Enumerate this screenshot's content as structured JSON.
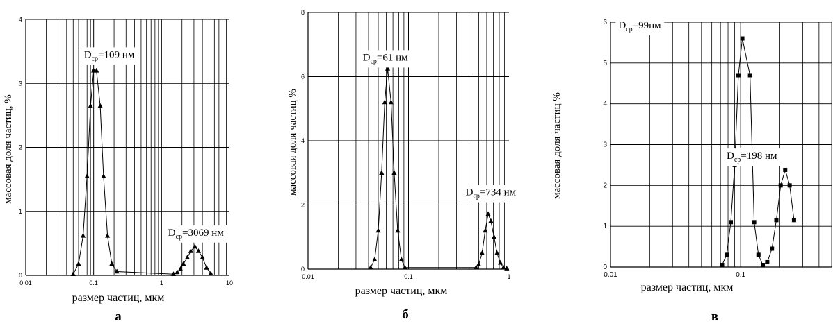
{
  "chart_data": [
    {
      "type": "line",
      "panel_label": "а",
      "xlabel": "размер частиц, мкм",
      "ylabel": "массовая доля частиц, %",
      "xscale": "log",
      "xlim": [
        0.01,
        10
      ],
      "ylim": [
        0,
        4
      ],
      "x_ticks": [
        {
          "value": 0.01,
          "label": "0.01"
        },
        {
          "value": 0.1,
          "label": "0.1"
        },
        {
          "value": 1,
          "label": "1"
        },
        {
          "value": 10,
          "label": "10"
        }
      ],
      "y_ticks": [
        {
          "value": 0,
          "label": "0"
        },
        {
          "value": 1,
          "label": "1"
        },
        {
          "value": 2,
          "label": "2"
        },
        {
          "value": 3,
          "label": "3"
        },
        {
          "value": 4,
          "label": "4"
        }
      ],
      "marker": "triangle",
      "series": [
        {
          "x": [
            0.05,
            0.06,
            0.07,
            0.08,
            0.09,
            0.1,
            0.11,
            0.125,
            0.14,
            0.16,
            0.185,
            0.22,
            1.5,
            1.7,
            1.9,
            2.1,
            2.4,
            2.7,
            3.1,
            3.5,
            4.0,
            4.6,
            5.3
          ],
          "y": [
            0.02,
            0.18,
            0.62,
            1.55,
            2.65,
            3.2,
            3.2,
            2.65,
            1.55,
            0.62,
            0.18,
            0.06,
            0.02,
            0.05,
            0.1,
            0.18,
            0.28,
            0.38,
            0.45,
            0.38,
            0.28,
            0.12,
            0.03
          ]
        }
      ],
      "annotations": [
        {
          "text_main": "D",
          "text_sub": "ср",
          "text_rest": "=109 нм",
          "x": 0.072,
          "y": 3.4
        },
        {
          "text_main": "D",
          "text_sub": "ср",
          "text_rest": "=3069 нм",
          "x": 1.25,
          "y": 0.62
        }
      ]
    },
    {
      "type": "line",
      "panel_label": "б",
      "xlabel": "размер частиц, мкм",
      "ylabel": "массовая доля частиц %",
      "xscale": "log",
      "xlim": [
        0.01,
        1
      ],
      "ylim": [
        0,
        8
      ],
      "x_ticks": [
        {
          "value": 0.01,
          "label": "0.01"
        },
        {
          "value": 0.1,
          "label": "0.1"
        },
        {
          "value": 1,
          "label": "1"
        }
      ],
      "y_ticks": [
        {
          "value": 0,
          "label": "0"
        },
        {
          "value": 2,
          "label": "2"
        },
        {
          "value": 4,
          "label": "4"
        },
        {
          "value": 6,
          "label": "6"
        },
        {
          "value": 8,
          "label": "8"
        }
      ],
      "marker": "triangle",
      "series": [
        {
          "x": [
            0.042,
            0.046,
            0.05,
            0.054,
            0.058,
            0.062,
            0.067,
            0.072,
            0.078,
            0.085,
            0.092,
            0.47,
            0.5,
            0.54,
            0.58,
            0.62,
            0.66,
            0.71,
            0.76,
            0.82,
            0.88,
            0.95
          ],
          "y": [
            0.05,
            0.3,
            1.2,
            3.0,
            5.2,
            6.25,
            5.2,
            3.0,
            1.2,
            0.3,
            0.05,
            0.05,
            0.15,
            0.5,
            1.2,
            1.72,
            1.5,
            1.0,
            0.5,
            0.2,
            0.05,
            0.02
          ]
        }
      ],
      "annotations": [
        {
          "text_main": "D",
          "text_sub": "ср",
          "text_rest": "=61 нм",
          "x": 0.035,
          "y": 6.5
        },
        {
          "text_main": "D",
          "text_sub": "ср",
          "text_rest": "=734 нм",
          "x": 0.37,
          "y": 2.3
        }
      ]
    },
    {
      "type": "line",
      "panel_label": "в",
      "xlabel": "размер частиц, мкм",
      "ylabel": "массовая доля частиц %",
      "xscale": "log",
      "xlim": [
        0.01,
        0.5
      ],
      "ylim": [
        0,
        6
      ],
      "x_ticks": [
        {
          "value": 0.01,
          "label": "0.01"
        },
        {
          "value": 0.1,
          "label": "0.1"
        }
      ],
      "y_ticks": [
        {
          "value": 0,
          "label": "0"
        },
        {
          "value": 1,
          "label": "1"
        },
        {
          "value": 2,
          "label": "2"
        },
        {
          "value": 3,
          "label": "3"
        },
        {
          "value": 4,
          "label": "4"
        },
        {
          "value": 5,
          "label": "5"
        },
        {
          "value": 6,
          "label": "6"
        }
      ],
      "marker": "square",
      "series": [
        {
          "x": [
            0.072,
            0.078,
            0.084,
            0.09,
            0.096,
            0.103,
            0.118,
            0.127,
            0.137,
            0.148,
            0.16,
            0.174,
            0.188,
            0.203,
            0.22,
            0.238,
            0.257
          ],
          "y": [
            0.05,
            0.3,
            1.1,
            2.5,
            4.7,
            5.6,
            4.7,
            1.1,
            0.3,
            0.05,
            0.12,
            0.45,
            1.15,
            2.0,
            2.38,
            2.0,
            1.15
          ]
        }
      ],
      "annotations": [
        {
          "text_main": "D",
          "text_sub": "ср",
          "text_rest": "=99нм",
          "x": 0.0115,
          "y": 5.85
        },
        {
          "text_main": "D",
          "text_sub": "ср",
          "text_rest": "=198 нм",
          "x": 0.078,
          "y": 2.65
        }
      ]
    }
  ]
}
